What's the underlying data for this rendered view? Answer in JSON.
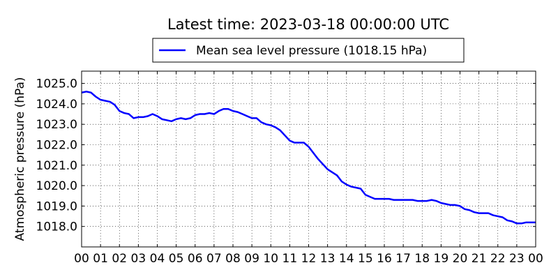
{
  "chart_data": {
    "type": "line",
    "title": "Latest time: 2023-03-18 00:00:00 UTC",
    "xlabel": "",
    "ylabel": "Atmospheric pressure (hPa)",
    "xlim": [
      0,
      24
    ],
    "ylim": [
      1017.0,
      1025.6
    ],
    "grid": true,
    "legend_position": "top-center",
    "x_ticks": [
      0,
      1,
      2,
      3,
      4,
      5,
      6,
      7,
      8,
      9,
      10,
      11,
      12,
      13,
      14,
      15,
      16,
      17,
      18,
      19,
      20,
      21,
      22,
      23,
      24
    ],
    "x_tick_labels": [
      "00",
      "01",
      "02",
      "03",
      "04",
      "05",
      "06",
      "07",
      "08",
      "09",
      "10",
      "11",
      "12",
      "13",
      "14",
      "15",
      "16",
      "17",
      "18",
      "19",
      "20",
      "21",
      "22",
      "23",
      "00"
    ],
    "y_ticks": [
      1018.0,
      1019.0,
      1020.0,
      1021.0,
      1022.0,
      1023.0,
      1024.0,
      1025.0
    ],
    "y_tick_labels": [
      "1018.0",
      "1019.0",
      "1020.0",
      "1021.0",
      "1022.0",
      "1023.0",
      "1024.0",
      "1025.0"
    ],
    "series": [
      {
        "name": "Mean sea level pressure (1018.15 hPa)",
        "color": "#0000ff",
        "x": [
          0.0,
          0.25,
          0.5,
          0.75,
          1.0,
          1.25,
          1.5,
          1.75,
          2.0,
          2.25,
          2.5,
          2.75,
          3.0,
          3.25,
          3.5,
          3.75,
          4.0,
          4.25,
          4.5,
          4.75,
          5.0,
          5.25,
          5.5,
          5.75,
          6.0,
          6.25,
          6.5,
          6.75,
          7.0,
          7.25,
          7.5,
          7.75,
          8.0,
          8.25,
          8.5,
          8.75,
          9.0,
          9.25,
          9.5,
          9.75,
          10.0,
          10.25,
          10.5,
          10.75,
          11.0,
          11.25,
          11.5,
          11.75,
          12.0,
          12.25,
          12.5,
          12.75,
          13.0,
          13.25,
          13.5,
          13.75,
          14.0,
          14.25,
          14.5,
          14.75,
          15.0,
          15.25,
          15.5,
          15.75,
          16.0,
          16.25,
          16.5,
          16.75,
          17.0,
          17.25,
          17.5,
          17.75,
          18.0,
          18.25,
          18.5,
          18.75,
          19.0,
          19.25,
          19.5,
          19.75,
          20.0,
          20.25,
          20.5,
          20.75,
          21.0,
          21.25,
          21.5,
          21.75,
          22.0,
          22.25,
          22.5,
          22.75,
          23.0,
          23.25,
          23.5,
          23.75,
          24.0
        ],
        "y": [
          1024.55,
          1024.6,
          1024.55,
          1024.35,
          1024.2,
          1024.15,
          1024.1,
          1023.95,
          1023.65,
          1023.55,
          1023.5,
          1023.3,
          1023.35,
          1023.35,
          1023.4,
          1023.5,
          1023.4,
          1023.25,
          1023.2,
          1023.15,
          1023.25,
          1023.3,
          1023.25,
          1023.3,
          1023.45,
          1023.5,
          1023.5,
          1023.55,
          1023.5,
          1023.65,
          1023.75,
          1023.75,
          1023.65,
          1023.6,
          1023.5,
          1023.4,
          1023.3,
          1023.3,
          1023.1,
          1023.0,
          1022.95,
          1022.85,
          1022.7,
          1022.45,
          1022.2,
          1022.1,
          1022.1,
          1022.1,
          1021.9,
          1021.6,
          1021.3,
          1021.05,
          1020.8,
          1020.65,
          1020.5,
          1020.2,
          1020.05,
          1019.95,
          1019.9,
          1019.85,
          1019.55,
          1019.45,
          1019.35,
          1019.35,
          1019.35,
          1019.35,
          1019.3,
          1019.3,
          1019.3,
          1019.3,
          1019.3,
          1019.25,
          1019.25,
          1019.25,
          1019.3,
          1019.25,
          1019.15,
          1019.1,
          1019.05,
          1019.05,
          1019.0,
          1018.85,
          1018.8,
          1018.7,
          1018.65,
          1018.65,
          1018.65,
          1018.55,
          1018.5,
          1018.45,
          1018.3,
          1018.25,
          1018.15,
          1018.15,
          1018.2,
          1018.2,
          1018.2
        ]
      }
    ]
  }
}
